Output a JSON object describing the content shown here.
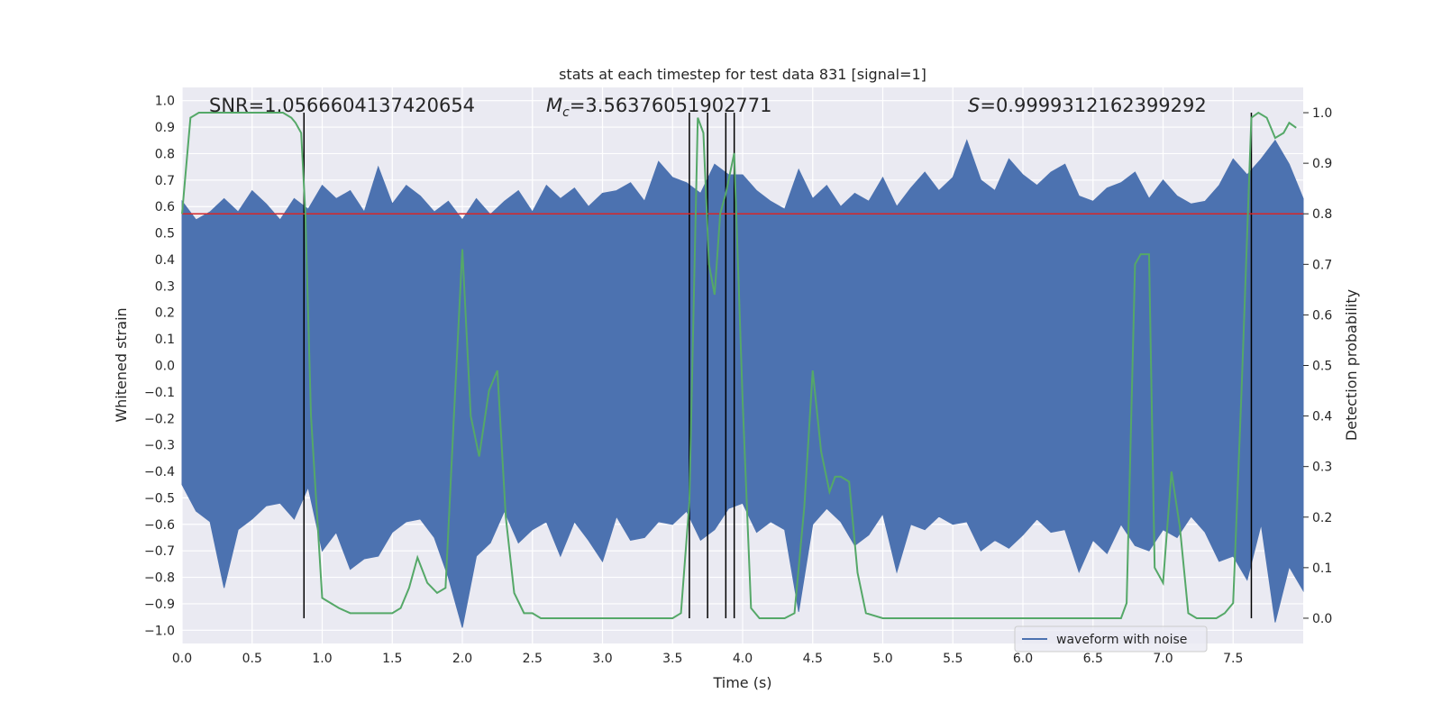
{
  "chart_data": {
    "type": "line",
    "title": "stats at each timestep for test data 831 [signal=1]",
    "xlabel": "Time (s)",
    "ylabel": "Whitened strain",
    "y2label": "Detection probability",
    "xlim": [
      0.0,
      8.0
    ],
    "ylim": [
      -1.05,
      1.05
    ],
    "y2lim": [
      -0.05,
      1.05
    ],
    "xticks": [
      "0.0",
      "0.5",
      "1.0",
      "1.5",
      "2.0",
      "2.5",
      "3.0",
      "3.5",
      "4.0",
      "4.5",
      "5.0",
      "5.5",
      "6.0",
      "6.5",
      "7.0",
      "7.5"
    ],
    "yticks": [
      "1.0",
      "0.9",
      "0.8",
      "0.7",
      "0.6",
      "0.5",
      "0.4",
      "0.3",
      "0.2",
      "0.1",
      "0.0",
      "−0.1",
      "−0.2",
      "−0.3",
      "−0.4",
      "−0.5",
      "−0.6",
      "−0.7",
      "−0.8",
      "−0.9",
      "−1.0"
    ],
    "y2ticks": [
      "1.0",
      "0.9",
      "0.8",
      "0.7",
      "0.6",
      "0.5",
      "0.4",
      "0.3",
      "0.2",
      "0.1",
      "0.0"
    ],
    "grid": true,
    "legend": {
      "position": "lower-right",
      "entries": [
        "waveform with noise"
      ]
    },
    "annotations": {
      "snr": "SNR=1.0566604137420654",
      "mc_symbol": "M",
      "mc_sub": "c",
      "mc_value": "=3.56376051902771",
      "s_symbol": "S",
      "s_value": "=0.9999312162399292"
    },
    "threshold_line": {
      "y2": 0.8,
      "color": "#d62728"
    },
    "vertical_lines_x": [
      0.87,
      3.62,
      3.75,
      3.88,
      3.94,
      7.63
    ],
    "series": [
      {
        "name": "waveform with noise",
        "color": "#4c72b0",
        "envelope": {
          "x": [
            0.0,
            0.1,
            0.2,
            0.3,
            0.4,
            0.5,
            0.6,
            0.7,
            0.8,
            0.9,
            1.0,
            1.1,
            1.2,
            1.3,
            1.4,
            1.5,
            1.6,
            1.7,
            1.8,
            1.9,
            2.0,
            2.1,
            2.2,
            2.3,
            2.4,
            2.5,
            2.6,
            2.7,
            2.8,
            2.9,
            3.0,
            3.1,
            3.2,
            3.3,
            3.4,
            3.5,
            3.6,
            3.7,
            3.8,
            3.9,
            4.0,
            4.1,
            4.2,
            4.3,
            4.4,
            4.5,
            4.6,
            4.7,
            4.8,
            4.9,
            5.0,
            5.1,
            5.2,
            5.3,
            5.4,
            5.5,
            5.6,
            5.7,
            5.8,
            5.9,
            6.0,
            6.1,
            6.2,
            6.3,
            6.4,
            6.5,
            6.6,
            6.7,
            6.8,
            6.9,
            7.0,
            7.1,
            7.2,
            7.3,
            7.4,
            7.5,
            7.6,
            7.7,
            7.8,
            7.9,
            8.0
          ],
          "upper": [
            0.62,
            0.55,
            0.58,
            0.63,
            0.58,
            0.66,
            0.61,
            0.55,
            0.63,
            0.59,
            0.68,
            0.63,
            0.66,
            0.58,
            0.75,
            0.61,
            0.68,
            0.64,
            0.58,
            0.62,
            0.55,
            0.63,
            0.57,
            0.62,
            0.66,
            0.58,
            0.68,
            0.63,
            0.67,
            0.6,
            0.65,
            0.66,
            0.69,
            0.62,
            0.77,
            0.71,
            0.69,
            0.65,
            0.76,
            0.72,
            0.72,
            0.66,
            0.62,
            0.59,
            0.74,
            0.63,
            0.68,
            0.6,
            0.65,
            0.62,
            0.71,
            0.6,
            0.67,
            0.73,
            0.66,
            0.71,
            0.85,
            0.7,
            0.66,
            0.78,
            0.72,
            0.68,
            0.73,
            0.76,
            0.64,
            0.62,
            0.67,
            0.69,
            0.73,
            0.63,
            0.7,
            0.64,
            0.61,
            0.62,
            0.68,
            0.78,
            0.72,
            0.78,
            0.85,
            0.76,
            0.63
          ],
          "lower": [
            -0.45,
            -0.55,
            -0.59,
            -0.84,
            -0.62,
            -0.58,
            -0.53,
            -0.52,
            -0.58,
            -0.46,
            -0.7,
            -0.63,
            -0.77,
            -0.73,
            -0.72,
            -0.63,
            -0.59,
            -0.58,
            -0.65,
            -0.8,
            -0.99,
            -0.72,
            -0.67,
            -0.55,
            -0.67,
            -0.62,
            -0.59,
            -0.72,
            -0.59,
            -0.66,
            -0.74,
            -0.57,
            -0.66,
            -0.65,
            -0.59,
            -0.6,
            -0.55,
            -0.66,
            -0.62,
            -0.54,
            -0.52,
            -0.63,
            -0.59,
            -0.62,
            -0.93,
            -0.6,
            -0.54,
            -0.59,
            -0.68,
            -0.64,
            -0.56,
            -0.78,
            -0.6,
            -0.62,
            -0.57,
            -0.6,
            -0.59,
            -0.7,
            -0.66,
            -0.69,
            -0.64,
            -0.58,
            -0.63,
            -0.62,
            -0.78,
            -0.66,
            -0.71,
            -0.6,
            -0.68,
            -0.7,
            -0.62,
            -0.65,
            -0.57,
            -0.63,
            -0.74,
            -0.72,
            -0.81,
            -0.6,
            -0.97,
            -0.76,
            -0.85
          ]
        }
      },
      {
        "name": "",
        "color": "#55a868",
        "axis": "right",
        "x": [
          0.0,
          0.06,
          0.12,
          0.2,
          0.3,
          0.4,
          0.5,
          0.6,
          0.65,
          0.72,
          0.78,
          0.81,
          0.85,
          0.88,
          0.92,
          1.0,
          1.06,
          1.12,
          1.2,
          1.3,
          1.37,
          1.44,
          1.5,
          1.56,
          1.62,
          1.68,
          1.75,
          1.82,
          1.88,
          1.94,
          2.0,
          2.06,
          2.12,
          2.19,
          2.25,
          2.31,
          2.37,
          2.44,
          2.5,
          2.56,
          2.7,
          2.8,
          3.0,
          3.2,
          3.4,
          3.5,
          3.56,
          3.62,
          3.68,
          3.72,
          3.76,
          3.8,
          3.84,
          3.88,
          3.94,
          4.0,
          4.06,
          4.12,
          4.2,
          4.3,
          4.37,
          4.44,
          4.5,
          4.56,
          4.62,
          4.66,
          4.7,
          4.76,
          4.82,
          4.88,
          5.0,
          5.1,
          5.2,
          5.25,
          5.3,
          5.4,
          5.5,
          5.6,
          5.7,
          5.8,
          5.9,
          6.0,
          6.1,
          6.2,
          6.3,
          6.4,
          6.5,
          6.6,
          6.7,
          6.74,
          6.8,
          6.84,
          6.9,
          6.94,
          7.0,
          7.06,
          7.12,
          7.18,
          7.24,
          7.3,
          7.38,
          7.44,
          7.5,
          7.56,
          7.63,
          7.68,
          7.74,
          7.8,
          7.86,
          7.9,
          7.95
        ],
        "y": [
          0.8,
          0.99,
          1.0,
          1.0,
          1.0,
          1.0,
          1.0,
          1.0,
          1.0,
          1.0,
          0.99,
          0.98,
          0.96,
          0.8,
          0.4,
          0.04,
          0.03,
          0.02,
          0.01,
          0.01,
          0.01,
          0.01,
          0.01,
          0.02,
          0.06,
          0.12,
          0.07,
          0.05,
          0.06,
          0.4,
          0.73,
          0.4,
          0.32,
          0.45,
          0.49,
          0.2,
          0.05,
          0.01,
          0.01,
          0.0,
          0.0,
          0.0,
          0.0,
          0.0,
          0.0,
          0.0,
          0.01,
          0.23,
          0.99,
          0.96,
          0.7,
          0.64,
          0.8,
          0.84,
          0.92,
          0.43,
          0.02,
          0.0,
          0.0,
          0.0,
          0.01,
          0.22,
          0.49,
          0.33,
          0.25,
          0.28,
          0.28,
          0.27,
          0.09,
          0.01,
          0.0,
          0.0,
          0.0,
          0.0,
          0.0,
          0.0,
          0.0,
          0.0,
          0.0,
          0.0,
          0.0,
          0.0,
          0.0,
          0.0,
          0.0,
          0.0,
          0.0,
          0.0,
          0.0,
          0.03,
          0.7,
          0.72,
          0.72,
          0.1,
          0.07,
          0.29,
          0.18,
          0.01,
          0.0,
          0.0,
          0.0,
          0.01,
          0.03,
          0.45,
          0.99,
          1.0,
          0.99,
          0.95,
          0.96,
          0.98,
          0.97
        ]
      }
    ]
  }
}
